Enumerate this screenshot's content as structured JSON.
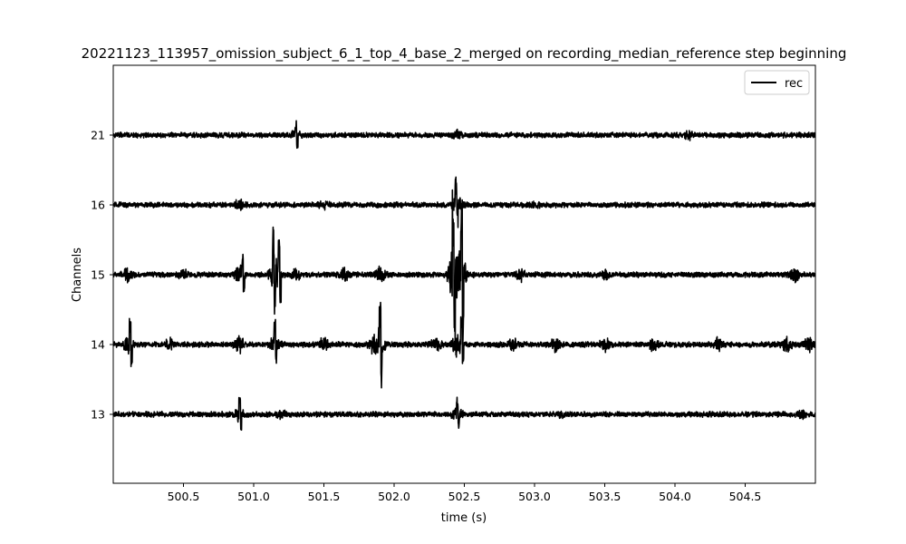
{
  "chart_data": {
    "type": "line",
    "title": "20221123_113957_omission_subject_6_1_top_4_base_2_merged on recording_median_reference step beginning",
    "xlabel": "time (s)",
    "ylabel": "Channels",
    "xlim": [
      500.0,
      505.0
    ],
    "x_ticks": [
      500.5,
      501.0,
      501.5,
      502.0,
      502.5,
      503.0,
      503.5,
      504.0,
      504.5
    ],
    "x_tick_labels": [
      "500.5",
      "501.0",
      "501.5",
      "502.0",
      "502.5",
      "503.0",
      "503.5",
      "504.0",
      "504.5"
    ],
    "channels": [
      "13",
      "14",
      "15",
      "16",
      "21"
    ],
    "legend": {
      "position": "top-right",
      "entries": [
        {
          "label": "rec",
          "color": "#000000"
        }
      ]
    },
    "trace_color": "#000000",
    "grid": false,
    "bursts": {
      "13": [
        [
          500.9,
          0.35
        ],
        [
          501.2,
          0.2
        ],
        [
          502.45,
          0.35
        ],
        [
          503.2,
          0.15
        ],
        [
          504.9,
          0.15
        ]
      ],
      "14": [
        [
          500.1,
          0.45
        ],
        [
          500.4,
          0.3
        ],
        [
          500.9,
          0.45
        ],
        [
          501.15,
          0.5
        ],
        [
          501.5,
          0.35
        ],
        [
          501.85,
          0.45
        ],
        [
          501.9,
          0.9
        ],
        [
          502.3,
          0.35
        ],
        [
          502.45,
          0.6
        ],
        [
          502.85,
          0.35
        ],
        [
          503.15,
          0.3
        ],
        [
          503.5,
          0.35
        ],
        [
          503.85,
          0.3
        ],
        [
          504.3,
          0.35
        ],
        [
          504.8,
          0.5
        ],
        [
          504.95,
          0.4
        ]
      ],
      "15": [
        [
          500.1,
          0.35
        ],
        [
          500.5,
          0.2
        ],
        [
          500.9,
          0.5
        ],
        [
          501.15,
          1.1
        ],
        [
          501.3,
          0.3
        ],
        [
          501.65,
          0.3
        ],
        [
          501.9,
          0.45
        ],
        [
          502.42,
          1.8
        ],
        [
          502.48,
          1.4
        ],
        [
          502.9,
          0.3
        ],
        [
          503.5,
          0.25
        ],
        [
          504.85,
          0.35
        ]
      ],
      "16": [
        [
          500.9,
          0.25
        ],
        [
          502.45,
          0.5
        ],
        [
          501.5,
          0.15
        ],
        [
          503.0,
          0.15
        ]
      ],
      "21": [
        [
          501.3,
          0.2
        ],
        [
          502.45,
          0.25
        ],
        [
          504.1,
          0.15
        ]
      ]
    },
    "spikes": {
      "13": [
        [
          500.9,
          0.45,
          -0.3
        ],
        [
          502.45,
          0.35,
          -0.25
        ]
      ],
      "14": [
        [
          501.9,
          0.85,
          -0.75
        ],
        [
          501.15,
          0.5,
          -0.3
        ],
        [
          500.12,
          0.5,
          -0.5
        ],
        [
          502.48,
          0.6,
          -0.4
        ]
      ],
      "15": [
        [
          501.14,
          0.95,
          -0.75
        ],
        [
          501.18,
          0.85,
          -0.7
        ],
        [
          502.42,
          1.7,
          -1.55
        ],
        [
          502.48,
          1.7,
          -1.4
        ],
        [
          500.92,
          0.45,
          -0.4
        ]
      ],
      "16": [
        [
          502.44,
          0.55,
          -0.3
        ]
      ],
      "21": [
        [
          501.3,
          0.25,
          -0.25
        ]
      ]
    }
  }
}
